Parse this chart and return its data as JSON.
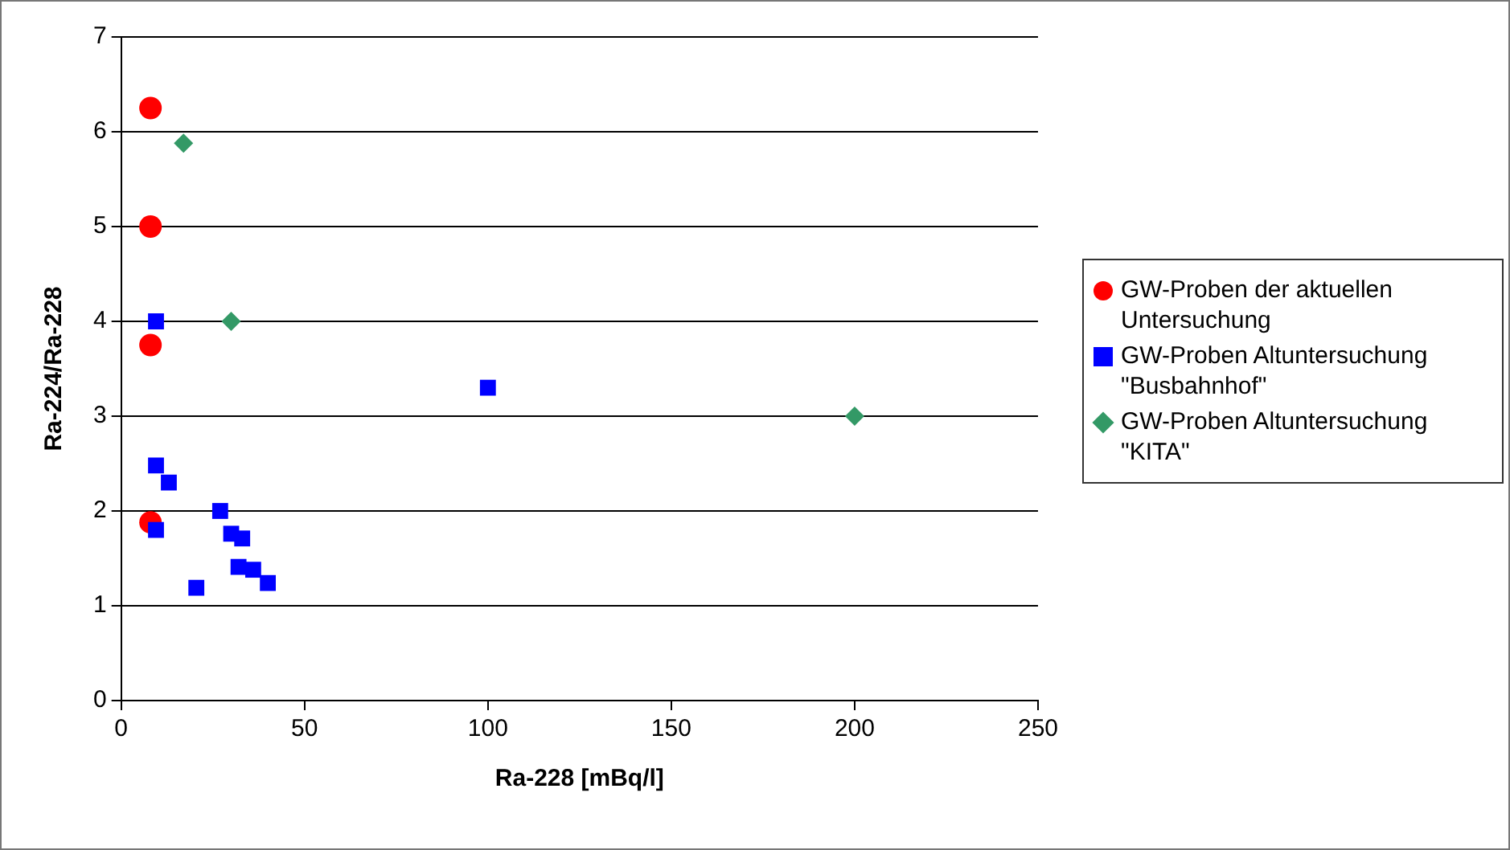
{
  "chart_data": {
    "type": "scatter",
    "xlabel": "Ra-228 [mBq/l]",
    "ylabel": "Ra-224/Ra-228",
    "xlim": [
      0,
      250
    ],
    "xticks": [
      0,
      50,
      100,
      150,
      200,
      250
    ],
    "ylim": [
      0,
      7
    ],
    "yticks": [
      0,
      1,
      2,
      3,
      4,
      5,
      6,
      7
    ],
    "grid": "y",
    "legend": "right",
    "series": [
      {
        "name": "GW-Proben der aktuellen Untersuchung",
        "color": "#ff0000",
        "marker": "circle",
        "x": [
          8,
          8,
          8,
          8
        ],
        "values": [
          6.25,
          5,
          3.75,
          1.88
        ]
      },
      {
        "name": "GW-Proben Altuntersuchung \"Busbahnhof\"",
        "color": "#0000ff",
        "marker": "square",
        "x": [
          9.5,
          9.5,
          13,
          9.5,
          20.5,
          27,
          30,
          33,
          32,
          36,
          40,
          100
        ],
        "values": [
          4,
          2.48,
          2.3,
          1.8,
          1.19,
          2,
          1.76,
          1.71,
          1.41,
          1.38,
          1.24,
          3.3
        ]
      },
      {
        "name": "GW-Proben Altuntersuchung \"KITA\"",
        "color": "#339966",
        "marker": "diamond",
        "x": [
          17,
          30,
          200
        ],
        "values": [
          5.88,
          4,
          3
        ]
      }
    ]
  }
}
